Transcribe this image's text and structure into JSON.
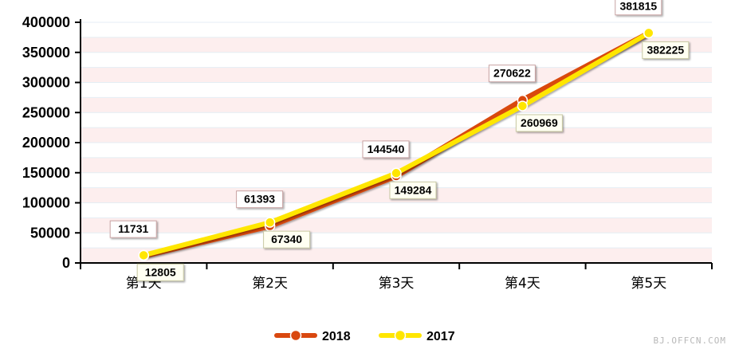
{
  "colors": {
    "series_2018": "#d9480f",
    "series_2017": "#ffe600",
    "band_light": "#fdeeee",
    "band_white": "#ffffff",
    "axis": "#000000"
  },
  "chart_data": {
    "type": "line",
    "categories": [
      "第1天",
      "第2天",
      "第3天",
      "第4天",
      "第5天"
    ],
    "ylim": [
      0,
      400000
    ],
    "yticks": [
      0,
      50000,
      100000,
      150000,
      200000,
      250000,
      300000,
      350000,
      400000
    ],
    "xlabel": "",
    "ylabel": "",
    "grid": "horizontal bands",
    "legend": "bottom-center",
    "series": [
      {
        "name": "2018",
        "color": "#d9480f",
        "values": [
          11731,
          61393,
          144540,
          270622,
          381815
        ],
        "label_position": "above"
      },
      {
        "name": "2017",
        "color": "#ffe600",
        "values": [
          12805,
          67340,
          149284,
          260969,
          382225
        ],
        "label_position": "below"
      }
    ]
  },
  "watermark": "BJ.OFFCN.COM"
}
